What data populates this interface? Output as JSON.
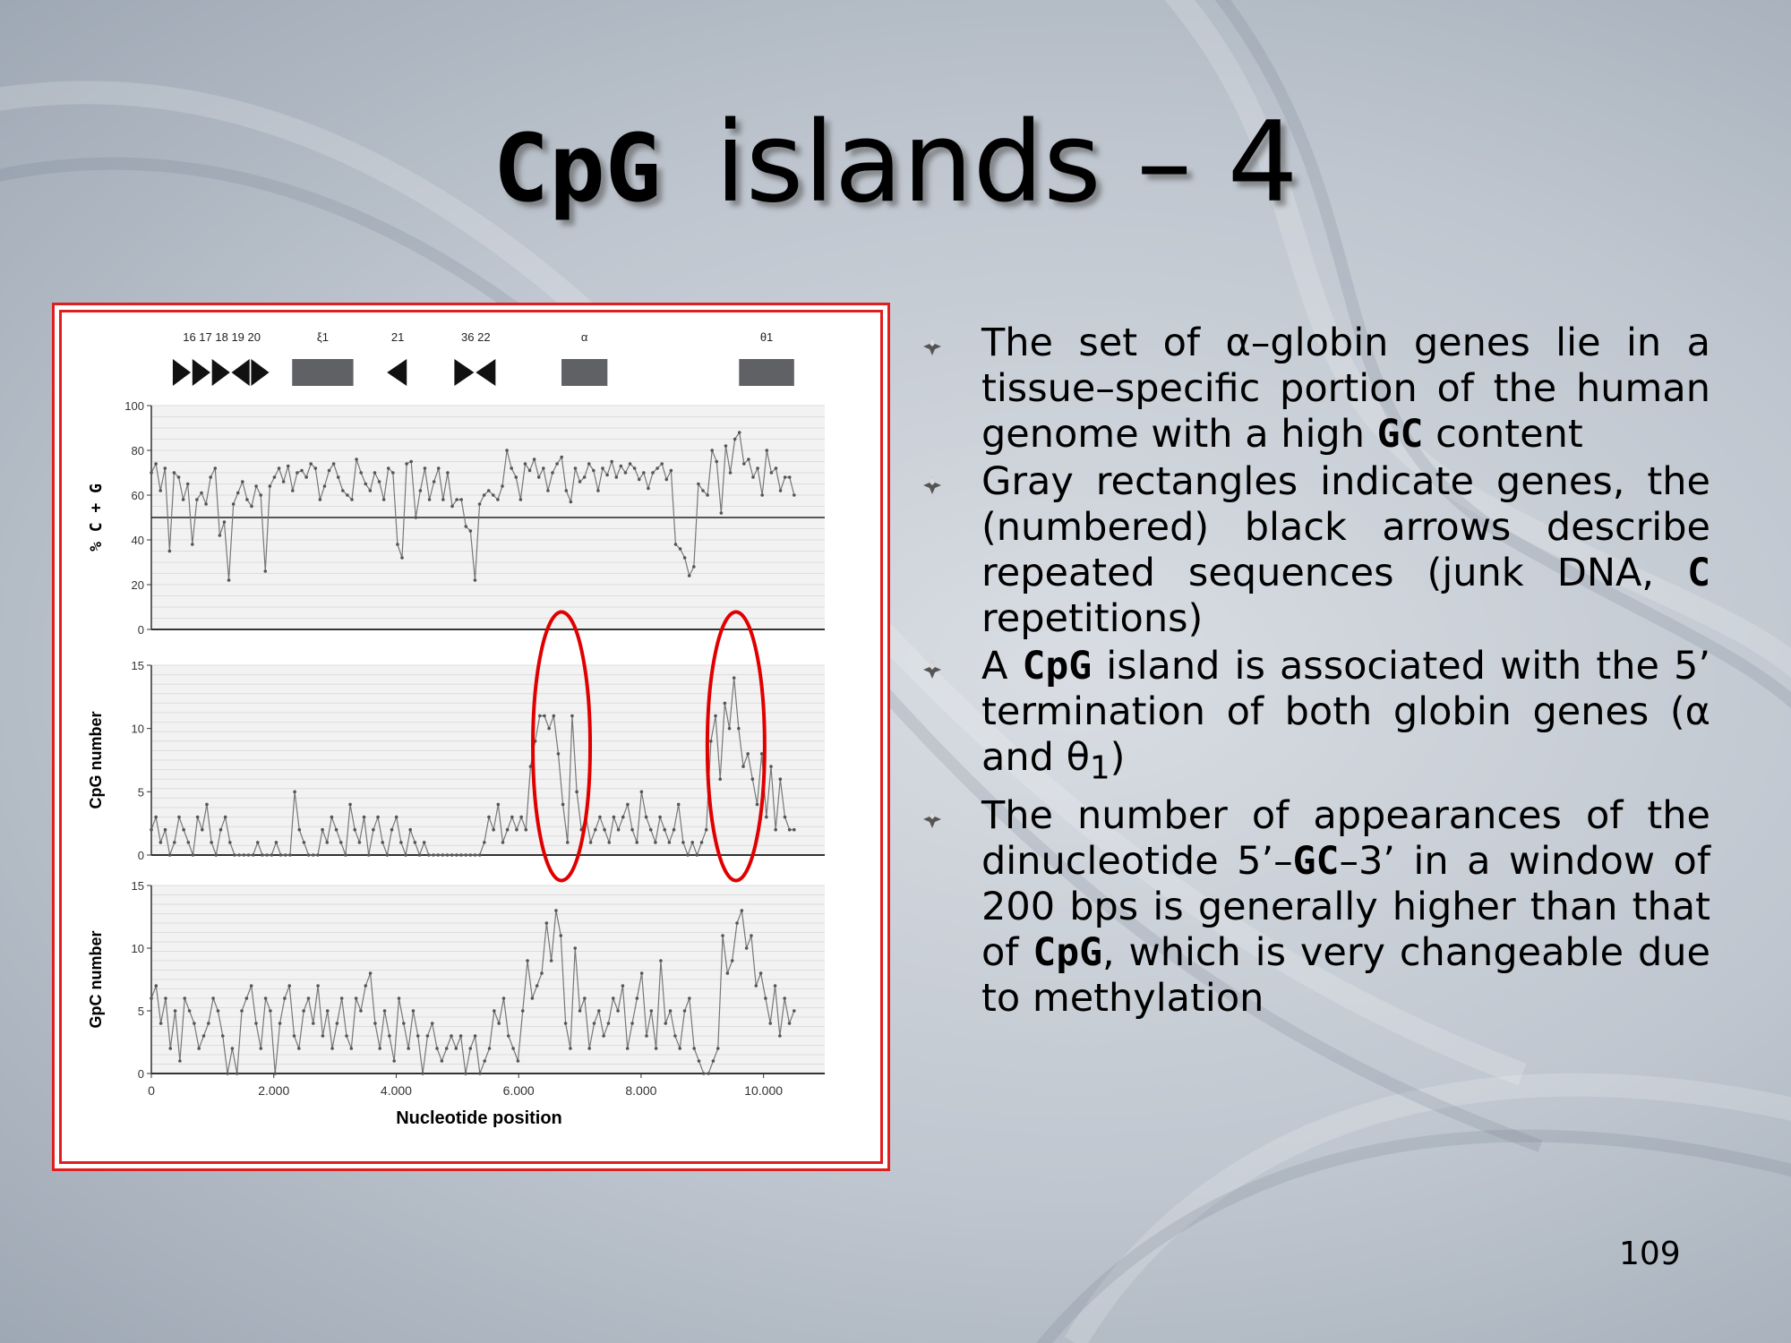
{
  "slide": {
    "title_code": "CpG",
    "title_text": "islands – 4",
    "page_number": "109"
  },
  "bullets": [
    {
      "segments": [
        {
          "t": "The set of α–globin genes lie in a tissue–specific portion of the human genome with a high "
        },
        {
          "t": "GC",
          "mono": true
        },
        {
          "t": " content"
        }
      ]
    },
    {
      "segments": [
        {
          "t": "Gray rectangles indicate genes, the (numbered) black arrows describe repeated sequences (junk DNA, "
        },
        {
          "t": "C",
          "mono": true
        },
        {
          "t": " repetitions)"
        }
      ]
    },
    {
      "segments": [
        {
          "t": "A "
        },
        {
          "t": "CpG",
          "mono": true
        },
        {
          "t": " island is associated with the 5’ termination of both globin genes (α and θ"
        },
        {
          "t": "1",
          "sub": true
        },
        {
          "t": ")"
        }
      ]
    },
    {
      "segments": [
        {
          "t": "The number of appearances of the dinucleotide 5’–"
        },
        {
          "t": "GC",
          "mono": true
        },
        {
          "t": "–3’ in a window of 200 bps is generally higher than that of "
        },
        {
          "t": "CpG",
          "mono": true
        },
        {
          "t": ", which is very changeable due to methylation"
        }
      ]
    }
  ],
  "chart_data": {
    "type": "line",
    "xlabel": "Nucleotide position",
    "x_ticks": [
      "0",
      "2.000",
      "4.000",
      "6.000",
      "8.000",
      "10.000"
    ],
    "x_tick_values": [
      0,
      2000,
      4000,
      6000,
      8000,
      10000
    ],
    "xlim": [
      0,
      11000
    ],
    "x_range_data": [
      0,
      10500
    ],
    "gene_track": [
      {
        "label": "16 17 18 19 20",
        "kind": "arrows",
        "directions": [
          "right",
          "right",
          "right",
          "left",
          "right"
        ],
        "x_start": 350,
        "x_end": 1950
      },
      {
        "label": "ξ1",
        "kind": "gene",
        "x_start": 2300,
        "x_end": 3300
      },
      {
        "label": "21",
        "kind": "arrows",
        "directions": [
          "left"
        ],
        "x_start": 3850,
        "x_end": 4200
      },
      {
        "label": "36 22",
        "kind": "arrows",
        "directions": [
          "right",
          "left"
        ],
        "x_start": 4950,
        "x_end": 5650
      },
      {
        "label": "α",
        "kind": "gene",
        "x_start": 6700,
        "x_end": 7450
      },
      {
        "label": "θ1",
        "kind": "gene",
        "x_start": 9600,
        "x_end": 10500
      }
    ],
    "panels": [
      {
        "ylabel": "% C + G",
        "ylim": [
          0,
          100
        ],
        "yticks": [
          "0",
          "20",
          "40",
          "60",
          "80",
          "100"
        ],
        "ytick_values": [
          0,
          20,
          40,
          60,
          80,
          100
        ],
        "reference_line": 50,
        "values": [
          70,
          74,
          62,
          72,
          35,
          70,
          68,
          58,
          65,
          38,
          58,
          61,
          56,
          68,
          72,
          42,
          48,
          22,
          56,
          61,
          66,
          58,
          55,
          64,
          60,
          26,
          64,
          68,
          72,
          66,
          73,
          62,
          70,
          71,
          68,
          74,
          72,
          58,
          64,
          71,
          74,
          68,
          62,
          60,
          58,
          76,
          70,
          65,
          62,
          70,
          66,
          58,
          72,
          70,
          38,
          32,
          74,
          75,
          50,
          62,
          72,
          58,
          66,
          72,
          58,
          70,
          55,
          58,
          58,
          46,
          44,
          22,
          56,
          60,
          62,
          60,
          58,
          64,
          80,
          72,
          68,
          58,
          74,
          71,
          76,
          68,
          72,
          62,
          70,
          74,
          77,
          62,
          57,
          72,
          66,
          68,
          74,
          71,
          62,
          72,
          69,
          75,
          68,
          73,
          70,
          74,
          72,
          67,
          70,
          63,
          70,
          72,
          74,
          67,
          71,
          38,
          36,
          32,
          24,
          28,
          65,
          62,
          60,
          80,
          75,
          52,
          82,
          70,
          85,
          88,
          74,
          76,
          68,
          72,
          60,
          80,
          70,
          72,
          62,
          68,
          68,
          60
        ]
      },
      {
        "ylabel": "CpG number",
        "ylim": [
          0,
          15
        ],
        "yticks": [
          "0",
          "5",
          "10",
          "15"
        ],
        "ytick_values": [
          0,
          5,
          10,
          15
        ],
        "annotations": [
          {
            "type": "ellipse",
            "x_center": 6700,
            "y_center": 8.6
          },
          {
            "type": "ellipse",
            "x_center": 9550,
            "y_center": 8.6
          }
        ],
        "values": [
          2,
          3,
          1,
          2,
          0,
          1,
          3,
          2,
          1,
          0,
          3,
          2,
          4,
          1,
          0,
          2,
          3,
          1,
          0,
          0,
          0,
          0,
          0,
          1,
          0,
          0,
          0,
          1,
          0,
          0,
          0,
          5,
          2,
          1,
          0,
          0,
          0,
          2,
          1,
          3,
          2,
          1,
          0,
          4,
          2,
          1,
          3,
          0,
          2,
          3,
          1,
          0,
          2,
          3,
          1,
          0,
          2,
          1,
          0,
          1,
          0,
          0,
          0,
          0,
          0,
          0,
          0,
          0,
          0,
          0,
          0,
          0,
          1,
          3,
          2,
          4,
          1,
          2,
          3,
          2,
          3,
          2,
          7,
          9,
          11,
          11,
          10,
          11,
          8,
          4,
          1,
          11,
          5,
          2,
          3,
          1,
          2,
          3,
          2,
          1,
          3,
          2,
          3,
          4,
          2,
          1,
          5,
          3,
          2,
          1,
          3,
          2,
          1,
          2,
          4,
          1,
          0,
          1,
          0,
          1,
          2,
          9,
          11,
          6,
          12,
          10,
          14,
          10,
          7,
          8,
          6,
          4,
          8,
          3,
          7,
          2,
          6,
          3,
          2,
          2
        ]
      },
      {
        "ylabel": "GpC number",
        "ylim": [
          0,
          15
        ],
        "yticks": [
          "0",
          "5",
          "10",
          "15"
        ],
        "ytick_values": [
          0,
          5,
          10,
          15
        ],
        "values": [
          6,
          7,
          4,
          6,
          2,
          5,
          1,
          6,
          5,
          4,
          2,
          3,
          4,
          6,
          5,
          3,
          0,
          2,
          0,
          5,
          6,
          7,
          4,
          2,
          6,
          5,
          0,
          4,
          6,
          7,
          3,
          2,
          5,
          6,
          4,
          7,
          3,
          5,
          2,
          4,
          6,
          3,
          2,
          6,
          5,
          7,
          8,
          4,
          2,
          5,
          3,
          1,
          6,
          4,
          2,
          5,
          3,
          0,
          3,
          4,
          2,
          1,
          2,
          3,
          2,
          3,
          0,
          2,
          3,
          0,
          1,
          2,
          5,
          4,
          6,
          3,
          2,
          1,
          5,
          9,
          6,
          7,
          8,
          12,
          9,
          13,
          11,
          4,
          2,
          10,
          5,
          6,
          2,
          4,
          5,
          3,
          4,
          6,
          5,
          7,
          2,
          4,
          6,
          8,
          3,
          5,
          2,
          9,
          4,
          5,
          3,
          2,
          5,
          6,
          2,
          1,
          0,
          0,
          1,
          2,
          11,
          8,
          9,
          12,
          13,
          10,
          11,
          7,
          8,
          6,
          4,
          7,
          3,
          6,
          4,
          5
        ]
      }
    ]
  }
}
